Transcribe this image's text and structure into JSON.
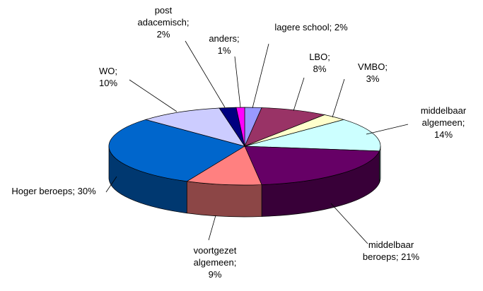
{
  "chart_data": {
    "type": "pie3d",
    "categories": [
      "lagere school;",
      "LBO;",
      "VMBO;",
      "middelbaar algemeen;",
      "middelbaar beroeps;",
      "voortgezet algemeen;",
      "Hoger beroeps;",
      "WO;",
      "post adacemisch;",
      "anders;"
    ],
    "values": [
      2,
      8,
      3,
      14,
      21,
      9,
      30,
      10,
      2,
      1
    ],
    "value_labels": [
      "2%",
      "8%",
      "3%",
      "14%",
      "21%",
      "9%",
      "30%",
      "10%",
      "2%",
      "1%"
    ],
    "colors": [
      "#9999ff",
      "#993366",
      "#ffffcc",
      "#ccffff",
      "#660066",
      "#ff8080",
      "#0066cc",
      "#ccccff",
      "#000080",
      "#ff00ff"
    ]
  }
}
